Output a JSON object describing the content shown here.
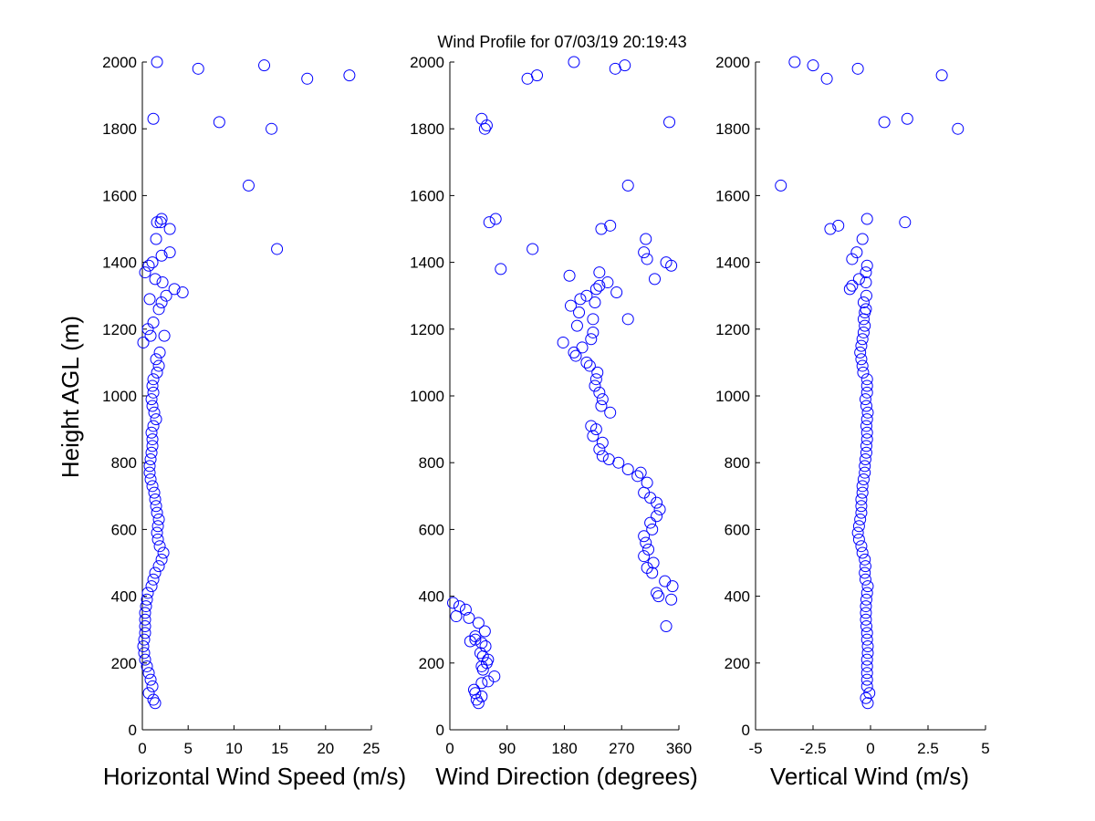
{
  "figure": {
    "title": "Wind Profile for  07/03/19 20:19:43",
    "ylabel": "Height AGL (m)",
    "marker_color": "#0000ff",
    "ylim": [
      0,
      2000
    ],
    "yticks": [
      "0",
      "200",
      "400",
      "600",
      "800",
      "1000",
      "1200",
      "1400",
      "1600",
      "1800",
      "2000"
    ]
  },
  "chart_data": [
    {
      "type": "scatter",
      "name": "horizontal-speed",
      "xlabel": "Horizontal Wind Speed (m/s)",
      "ylabel": "Height AGL (m)",
      "xlim": [
        0,
        25
      ],
      "ylim": [
        0,
        2000
      ],
      "xticks": [
        0,
        5,
        10,
        15,
        20,
        25
      ],
      "xtick_labels": [
        "0",
        "5",
        "10",
        "15",
        "20",
        "25"
      ],
      "yticks": [
        0,
        200,
        400,
        600,
        800,
        1000,
        1200,
        1400,
        1600,
        1800,
        2000
      ],
      "ytick_labels": [
        "0",
        "200",
        "400",
        "600",
        "800",
        "1000",
        "1200",
        "1400",
        "1600",
        "1800",
        "2000"
      ],
      "points": [
        [
          1.4,
          80
        ],
        [
          1.2,
          90
        ],
        [
          0.7,
          110
        ],
        [
          1.1,
          130
        ],
        [
          0.9,
          150
        ],
        [
          0.7,
          170
        ],
        [
          0.5,
          190
        ],
        [
          0.3,
          210
        ],
        [
          0.2,
          230
        ],
        [
          0.1,
          250
        ],
        [
          0.2,
          270
        ],
        [
          0.3,
          290
        ],
        [
          0.3,
          310
        ],
        [
          0.3,
          330
        ],
        [
          0.3,
          350
        ],
        [
          0.4,
          370
        ],
        [
          0.5,
          390
        ],
        [
          0.6,
          410
        ],
        [
          1.0,
          430
        ],
        [
          1.2,
          450
        ],
        [
          1.4,
          470
        ],
        [
          1.8,
          490
        ],
        [
          2.1,
          510
        ],
        [
          2.3,
          530
        ],
        [
          1.9,
          550
        ],
        [
          1.7,
          570
        ],
        [
          1.6,
          590
        ],
        [
          1.7,
          610
        ],
        [
          1.8,
          630
        ],
        [
          1.6,
          650
        ],
        [
          1.5,
          670
        ],
        [
          1.4,
          690
        ],
        [
          1.3,
          710
        ],
        [
          1.1,
          730
        ],
        [
          0.9,
          750
        ],
        [
          0.8,
          770
        ],
        [
          0.8,
          790
        ],
        [
          0.9,
          810
        ],
        [
          1.0,
          830
        ],
        [
          1.1,
          850
        ],
        [
          1.1,
          870
        ],
        [
          1.0,
          890
        ],
        [
          1.2,
          910
        ],
        [
          1.5,
          930
        ],
        [
          1.3,
          950
        ],
        [
          1.1,
          970
        ],
        [
          1.0,
          990
        ],
        [
          1.2,
          1010
        ],
        [
          1.1,
          1030
        ],
        [
          1.2,
          1050
        ],
        [
          1.6,
          1070
        ],
        [
          1.8,
          1090
        ],
        [
          1.5,
          1110
        ],
        [
          1.9,
          1130
        ],
        [
          2.4,
          1180
        ],
        [
          0.9,
          1180
        ],
        [
          0.1,
          1160
        ],
        [
          0.6,
          1200
        ],
        [
          1.2,
          1220
        ],
        [
          1.8,
          1260
        ],
        [
          2.1,
          1280
        ],
        [
          0.8,
          1290
        ],
        [
          2.6,
          1300
        ],
        [
          3.5,
          1320
        ],
        [
          4.4,
          1310
        ],
        [
          2.2,
          1340
        ],
        [
          1.4,
          1350
        ],
        [
          0.3,
          1370
        ],
        [
          0.7,
          1390
        ],
        [
          1.1,
          1400
        ],
        [
          2.1,
          1420
        ],
        [
          3.0,
          1430
        ],
        [
          1.5,
          1470
        ],
        [
          3.0,
          1500
        ],
        [
          2.0,
          1520
        ],
        [
          1.6,
          1520
        ],
        [
          2.1,
          1530
        ],
        [
          11.6,
          1630
        ],
        [
          14.7,
          1440
        ],
        [
          1.2,
          1830
        ],
        [
          8.4,
          1820
        ],
        [
          14.1,
          1800
        ],
        [
          18.0,
          1950
        ],
        [
          22.6,
          1960
        ],
        [
          6.1,
          1980
        ],
        [
          13.3,
          1990
        ],
        [
          1.6,
          2000
        ]
      ]
    },
    {
      "type": "scatter",
      "name": "wind-direction",
      "xlabel": "Wind Direction (degrees)",
      "ylabel": "",
      "xlim": [
        0,
        360
      ],
      "ylim": [
        0,
        2000
      ],
      "xticks": [
        0,
        90,
        180,
        270,
        360
      ],
      "xtick_labels": [
        "0",
        "90",
        "180",
        "270",
        "360"
      ],
      "yticks": [
        0,
        200,
        400,
        600,
        800,
        1000,
        1200,
        1400,
        1600,
        1800,
        2000
      ],
      "ytick_labels": [
        "0",
        "200",
        "400",
        "600",
        "800",
        "1000",
        "1200",
        "1400",
        "1600",
        "1800",
        "2000"
      ],
      "points": [
        [
          45,
          80
        ],
        [
          42,
          90
        ],
        [
          50,
          100
        ],
        [
          40,
          110
        ],
        [
          38,
          120
        ],
        [
          50,
          140
        ],
        [
          60,
          145
        ],
        [
          70,
          160
        ],
        [
          52,
          180
        ],
        [
          50,
          190
        ],
        [
          58,
          200
        ],
        [
          60,
          210
        ],
        [
          52,
          220
        ],
        [
          48,
          230
        ],
        [
          56,
          250
        ],
        [
          50,
          260
        ],
        [
          32,
          265
        ],
        [
          40,
          270
        ],
        [
          40,
          280
        ],
        [
          55,
          295
        ],
        [
          45,
          320
        ],
        [
          10,
          340
        ],
        [
          30,
          335
        ],
        [
          25,
          360
        ],
        [
          15,
          370
        ],
        [
          5,
          380
        ],
        [
          340,
          310
        ],
        [
          348,
          390
        ],
        [
          328,
          400
        ],
        [
          325,
          410
        ],
        [
          350,
          430
        ],
        [
          338,
          445
        ],
        [
          318,
          470
        ],
        [
          310,
          485
        ],
        [
          320,
          500
        ],
        [
          305,
          520
        ],
        [
          312,
          540
        ],
        [
          308,
          560
        ],
        [
          305,
          580
        ],
        [
          318,
          600
        ],
        [
          315,
          620
        ],
        [
          325,
          640
        ],
        [
          330,
          660
        ],
        [
          325,
          680
        ],
        [
          315,
          695
        ],
        [
          305,
          710
        ],
        [
          310,
          740
        ],
        [
          295,
          760
        ],
        [
          300,
          770
        ],
        [
          280,
          780
        ],
        [
          265,
          800
        ],
        [
          250,
          810
        ],
        [
          240,
          820
        ],
        [
          235,
          840
        ],
        [
          240,
          860
        ],
        [
          225,
          880
        ],
        [
          230,
          900
        ],
        [
          222,
          910
        ],
        [
          252,
          950
        ],
        [
          238,
          970
        ],
        [
          240,
          990
        ],
        [
          235,
          1010
        ],
        [
          228,
          1030
        ],
        [
          230,
          1050
        ],
        [
          232,
          1070
        ],
        [
          220,
          1090
        ],
        [
          215,
          1100
        ],
        [
          198,
          1120
        ],
        [
          195,
          1130
        ],
        [
          208,
          1145
        ],
        [
          222,
          1170
        ],
        [
          178,
          1160
        ],
        [
          225,
          1190
        ],
        [
          200,
          1210
        ],
        [
          225,
          1230
        ],
        [
          280,
          1230
        ],
        [
          203,
          1250
        ],
        [
          228,
          1280
        ],
        [
          190,
          1270
        ],
        [
          205,
          1290
        ],
        [
          215,
          1300
        ],
        [
          230,
          1320
        ],
        [
          262,
          1310
        ],
        [
          235,
          1330
        ],
        [
          248,
          1340
        ],
        [
          188,
          1360
        ],
        [
          235,
          1370
        ],
        [
          322,
          1350
        ],
        [
          340,
          1400
        ],
        [
          348,
          1390
        ],
        [
          80,
          1380
        ],
        [
          310,
          1410
        ],
        [
          305,
          1430
        ],
        [
          308,
          1470
        ],
        [
          130,
          1440
        ],
        [
          62,
          1520
        ],
        [
          72,
          1530
        ],
        [
          238,
          1500
        ],
        [
          252,
          1510
        ],
        [
          280,
          1630
        ],
        [
          50,
          1830
        ],
        [
          58,
          1810
        ],
        [
          55,
          1800
        ],
        [
          345,
          1820
        ],
        [
          122,
          1950
        ],
        [
          137,
          1960
        ],
        [
          195,
          2000
        ],
        [
          260,
          1980
        ],
        [
          275,
          1990
        ]
      ]
    },
    {
      "type": "scatter",
      "name": "vertical-wind",
      "xlabel": "Vertical Wind (m/s)",
      "ylabel": "",
      "xlim": [
        -5,
        5
      ],
      "ylim": [
        0,
        2000
      ],
      "xticks": [
        -5,
        -2.5,
        0,
        2.5,
        5
      ],
      "xtick_labels": [
        "-5",
        "-2.5",
        "0",
        "2.5",
        "5"
      ],
      "yticks": [
        0,
        200,
        400,
        600,
        800,
        1000,
        1200,
        1400,
        1600,
        1800,
        2000
      ],
      "ytick_labels": [
        "0",
        "200",
        "400",
        "600",
        "800",
        "1000",
        "1200",
        "1400",
        "1600",
        "1800",
        "2000"
      ],
      "points": [
        [
          -0.12,
          80
        ],
        [
          -0.2,
          95
        ],
        [
          -0.05,
          110
        ],
        [
          -0.15,
          130
        ],
        [
          -0.15,
          150
        ],
        [
          -0.15,
          170
        ],
        [
          -0.15,
          190
        ],
        [
          -0.15,
          210
        ],
        [
          -0.12,
          230
        ],
        [
          -0.12,
          250
        ],
        [
          -0.15,
          270
        ],
        [
          -0.15,
          290
        ],
        [
          -0.18,
          310
        ],
        [
          -0.2,
          330
        ],
        [
          -0.2,
          350
        ],
        [
          -0.2,
          370
        ],
        [
          -0.18,
          390
        ],
        [
          -0.15,
          410
        ],
        [
          -0.12,
          430
        ],
        [
          -0.22,
          450
        ],
        [
          -0.25,
          470
        ],
        [
          -0.22,
          490
        ],
        [
          -0.25,
          510
        ],
        [
          -0.35,
          530
        ],
        [
          -0.4,
          550
        ],
        [
          -0.5,
          570
        ],
        [
          -0.55,
          590
        ],
        [
          -0.5,
          610
        ],
        [
          -0.45,
          630
        ],
        [
          -0.4,
          650
        ],
        [
          -0.4,
          670
        ],
        [
          -0.4,
          690
        ],
        [
          -0.35,
          710
        ],
        [
          -0.35,
          730
        ],
        [
          -0.3,
          750
        ],
        [
          -0.25,
          770
        ],
        [
          -0.25,
          790
        ],
        [
          -0.22,
          810
        ],
        [
          -0.18,
          830
        ],
        [
          -0.18,
          850
        ],
        [
          -0.15,
          870
        ],
        [
          -0.15,
          890
        ],
        [
          -0.18,
          910
        ],
        [
          -0.15,
          930
        ],
        [
          -0.12,
          950
        ],
        [
          -0.18,
          970
        ],
        [
          -0.22,
          990
        ],
        [
          -0.15,
          1010
        ],
        [
          -0.15,
          1030
        ],
        [
          -0.15,
          1050
        ],
        [
          -0.32,
          1070
        ],
        [
          -0.35,
          1090
        ],
        [
          -0.4,
          1110
        ],
        [
          -0.45,
          1130
        ],
        [
          -0.4,
          1150
        ],
        [
          -0.35,
          1170
        ],
        [
          -0.3,
          1190
        ],
        [
          -0.25,
          1210
        ],
        [
          -0.3,
          1230
        ],
        [
          -0.25,
          1250
        ],
        [
          -0.2,
          1260
        ],
        [
          -0.3,
          1280
        ],
        [
          -0.18,
          1300
        ],
        [
          -0.9,
          1320
        ],
        [
          -0.8,
          1330
        ],
        [
          -0.2,
          1340
        ],
        [
          -0.5,
          1350
        ],
        [
          -0.2,
          1370
        ],
        [
          -0.15,
          1390
        ],
        [
          -0.8,
          1410
        ],
        [
          -0.6,
          1430
        ],
        [
          -0.35,
          1470
        ],
        [
          -1.75,
          1500
        ],
        [
          -1.4,
          1510
        ],
        [
          1.5,
          1520
        ],
        [
          -0.15,
          1530
        ],
        [
          -3.9,
          1630
        ],
        [
          1.6,
          1830
        ],
        [
          0.6,
          1820
        ],
        [
          3.8,
          1800
        ],
        [
          -1.9,
          1950
        ],
        [
          3.1,
          1960
        ],
        [
          -0.55,
          1980
        ],
        [
          -2.5,
          1990
        ],
        [
          -3.3,
          2000
        ]
      ]
    }
  ]
}
